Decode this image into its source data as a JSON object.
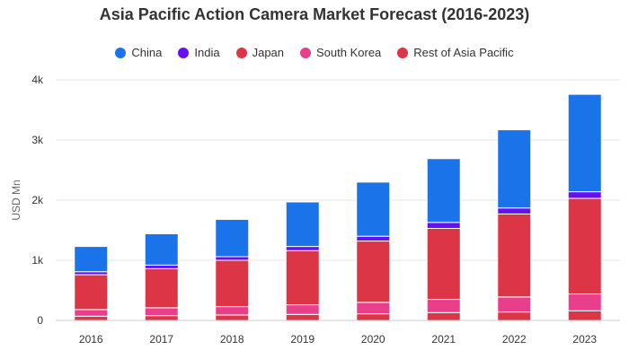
{
  "chart_data": {
    "type": "bar",
    "stacked": true,
    "title": "Asia Pacific Action Camera Market Forecast (2016-2023)",
    "ylabel": "USD Mn",
    "xlabel": "",
    "ylim": [
      0,
      4000
    ],
    "yticks": [
      0,
      1000,
      2000,
      3000,
      4000
    ],
    "ytick_labels": [
      "0",
      "1k",
      "2k",
      "3k",
      "4k"
    ],
    "grid": true,
    "legend_position": "top",
    "categories": [
      "2016",
      "2017",
      "2018",
      "2019",
      "2020",
      "2021",
      "2022",
      "2023"
    ],
    "series": [
      {
        "name": "Rest of Asia Pacific",
        "color": "#dc3545",
        "values": [
          70,
          80,
          90,
          100,
          110,
          130,
          140,
          160
        ]
      },
      {
        "name": "South Korea",
        "color": "#e83e8c",
        "values": [
          110,
          130,
          140,
          160,
          190,
          220,
          250,
          280
        ]
      },
      {
        "name": "Japan",
        "color": "#dc3545",
        "values": [
          580,
          650,
          770,
          900,
          1020,
          1180,
          1380,
          1590
        ]
      },
      {
        "name": "India",
        "color": "#6610f2",
        "values": [
          50,
          60,
          60,
          70,
          80,
          100,
          100,
          110
        ]
      },
      {
        "name": "China",
        "color": "#1a73e8",
        "values": [
          420,
          520,
          620,
          740,
          900,
          1060,
          1300,
          1620
        ]
      }
    ],
    "legend_order": [
      "China",
      "India",
      "Japan",
      "South Korea",
      "Rest of Asia Pacific"
    ]
  }
}
